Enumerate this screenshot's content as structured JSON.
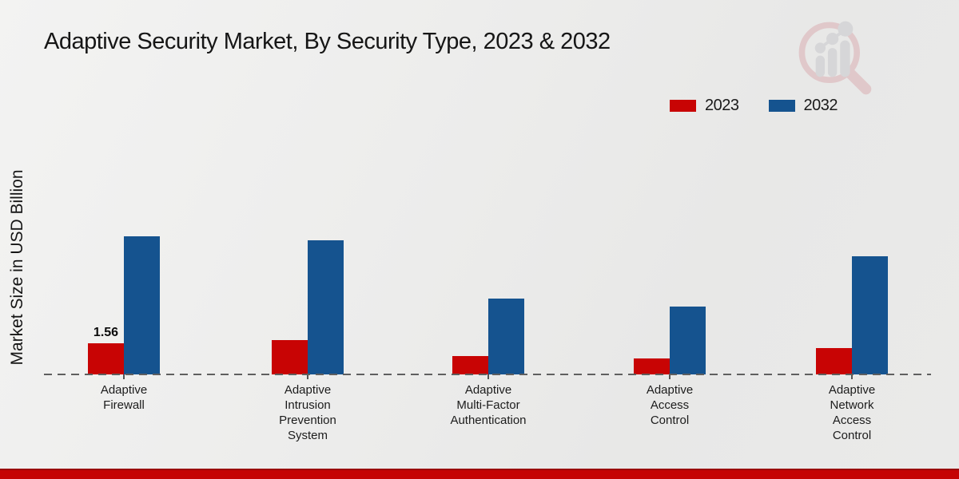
{
  "title": "Adaptive Security Market, By Security Type, 2023 & 2032",
  "watermark_icon": "market-research-future-magnifier-logo",
  "colors": {
    "bar_2023": "#c80404",
    "bar_2032": "#15538f",
    "baseline": "#5f5f5f",
    "footer_band": "#c50404",
    "background": "#ebebea",
    "text": "#111111"
  },
  "chart_data": {
    "type": "bar",
    "title": "Adaptive Security Market, By Security Type, 2023 & 2032",
    "ylabel": "Market Size in USD Billion",
    "xlabel": "",
    "categories": [
      "Adaptive Firewall",
      "Adaptive Intrusion Prevention System",
      "Adaptive Multi-Factor Authentication",
      "Adaptive Access Control",
      "Adaptive Network Access Control"
    ],
    "category_lines": [
      [
        "Adaptive",
        "Firewall"
      ],
      [
        "Adaptive",
        "Intrusion",
        "Prevention",
        "System"
      ],
      [
        "Adaptive",
        "Multi-Factor",
        "Authentication"
      ],
      [
        "Adaptive",
        "Access",
        "Control"
      ],
      [
        "Adaptive",
        "Network",
        "Access",
        "Control"
      ]
    ],
    "series": [
      {
        "name": "2023",
        "color": "#c80404",
        "values": [
          1.56,
          1.7,
          0.9,
          0.8,
          1.3
        ]
      },
      {
        "name": "2032",
        "color": "#15538f",
        "values": [
          6.9,
          6.7,
          3.8,
          3.4,
          5.9
        ]
      }
    ],
    "data_labels": [
      {
        "series_index": 0,
        "category_index": 0,
        "text": "1.56"
      }
    ],
    "baseline_style": "dashed",
    "grid": false,
    "y_axis_tick_labels_visible": false,
    "legend_position": "top-right",
    "ylim": [
      0,
      8
    ]
  }
}
